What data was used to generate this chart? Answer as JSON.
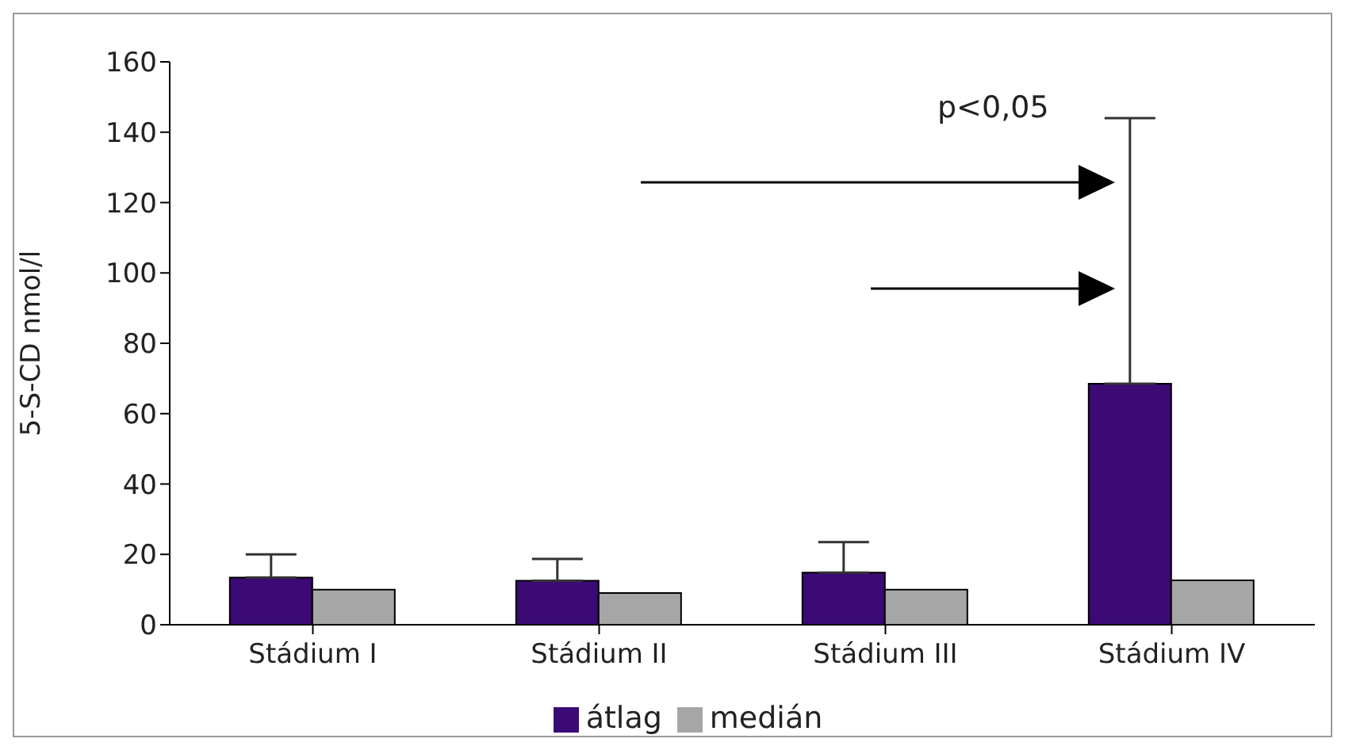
{
  "chart_data": {
    "type": "bar",
    "ylabel": "5-S-CD nmol/l",
    "categories": [
      "Stádium I",
      "Stádium II",
      "Stádium III",
      "Stádium IV"
    ],
    "series": [
      {
        "name": "átlag",
        "color": "#3b0a74",
        "values": [
          13.4,
          12.5,
          14.8,
          68.5
        ],
        "errors": [
          [
            13.4,
            20
          ],
          [
            12.5,
            18.7
          ],
          [
            14.8,
            23.5
          ],
          [
            68.5,
            144
          ]
        ]
      },
      {
        "name": "medián",
        "color": "#a6a6a6",
        "values": [
          10,
          9,
          10,
          12.6
        ]
      }
    ],
    "ylim": [
      0,
      160
    ],
    "yticks": [
      0,
      20,
      40,
      60,
      80,
      100,
      120,
      140,
      160
    ],
    "grid": false,
    "legend": "bottom",
    "annotations": [
      "p<0,05"
    ]
  }
}
